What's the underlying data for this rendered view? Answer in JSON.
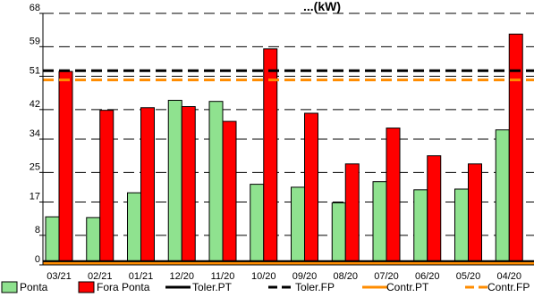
{
  "chart_data": {
    "type": "bar",
    "title": "...(kW)",
    "categories": [
      "03/21",
      "02/21",
      "01/21",
      "12/20",
      "11/20",
      "10/20",
      "09/20",
      "08/20",
      "07/20",
      "06/20",
      "05/20",
      "04/20"
    ],
    "y_ticks": [
      "0",
      "8",
      "17",
      "25",
      "34",
      "42",
      "51",
      "59",
      "68"
    ],
    "ylim": [
      0,
      68
    ],
    "series": [
      {
        "name": "Ponta",
        "values": [
          13.0,
          12.8,
          19.5,
          44.5,
          44.2,
          21.8,
          21.0,
          16.8,
          22.5,
          20.3,
          20.5,
          36.5
        ],
        "color": "#8fe28f"
      },
      {
        "name": "Fora Ponta",
        "values": [
          52.3,
          41.8,
          42.5,
          42.8,
          38.8,
          58.4,
          41.0,
          27.3,
          37.0,
          29.5,
          27.3,
          62.4
        ],
        "color": "#ff0000"
      }
    ],
    "reference_lines": [
      {
        "name": "Toler.PT",
        "value": 0.9,
        "color": "#000000",
        "style": "solid"
      },
      {
        "name": "Toler.FP",
        "value": 52.5,
        "color": "#000000",
        "style": "dashed"
      },
      {
        "name": "Contr.PT",
        "value": 0.4,
        "color": "#ff8c00",
        "style": "solid"
      },
      {
        "name": "Contr.FP",
        "value": 50.0,
        "color": "#ff8c00",
        "style": "dashed"
      }
    ],
    "grid": true,
    "legend_position": "bottom"
  }
}
